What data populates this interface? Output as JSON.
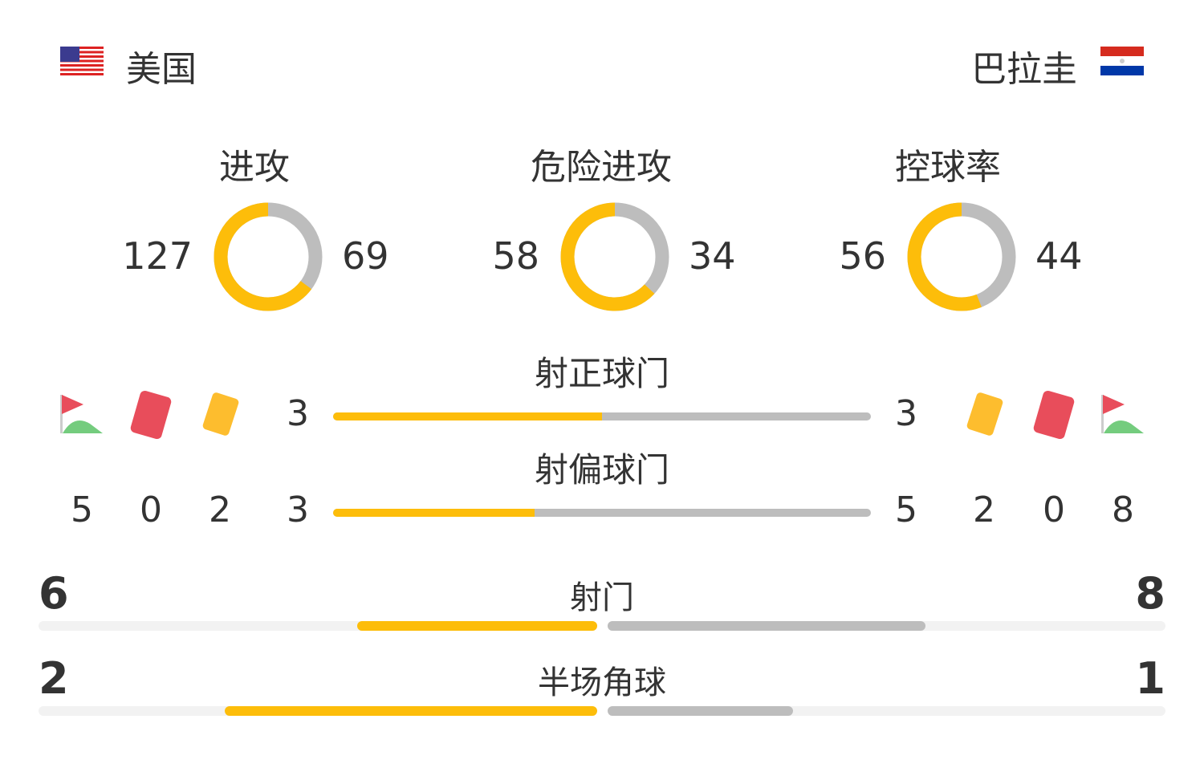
{
  "home": {
    "name": "美国",
    "flag": "us-flag-icon"
  },
  "away": {
    "name": "巴拉圭",
    "flag": "paraguay-flag-icon"
  },
  "colors": {
    "home": "#fdbd0a",
    "away": "#bdbdbd"
  },
  "donuts": [
    {
      "title": "进攻",
      "home": 127,
      "away": 69
    },
    {
      "title": "危险进攻",
      "home": 58,
      "away": 34
    },
    {
      "title": "控球率",
      "home": 56,
      "away": 44
    }
  ],
  "shots_on_target": {
    "title": "射正球门",
    "home": "3",
    "away": "3",
    "home_fraction": 0.5
  },
  "shots_off_target": {
    "title": "射偏球门",
    "home": "3",
    "away": "5",
    "home_fraction": 0.375
  },
  "home_counts": {
    "corners": "5",
    "red_cards": "0",
    "yellow_cards": "2"
  },
  "away_counts": {
    "yellow_cards": "2",
    "red_cards": "0",
    "corners": "8"
  },
  "shots": {
    "title": "射门",
    "home": "6",
    "away": "8",
    "home_fraction": 0.43,
    "away_fraction": 0.57
  },
  "half_corners": {
    "title": "半场角球",
    "home": "2",
    "away": "1",
    "home_fraction": 0.667,
    "away_fraction": 0.333
  }
}
